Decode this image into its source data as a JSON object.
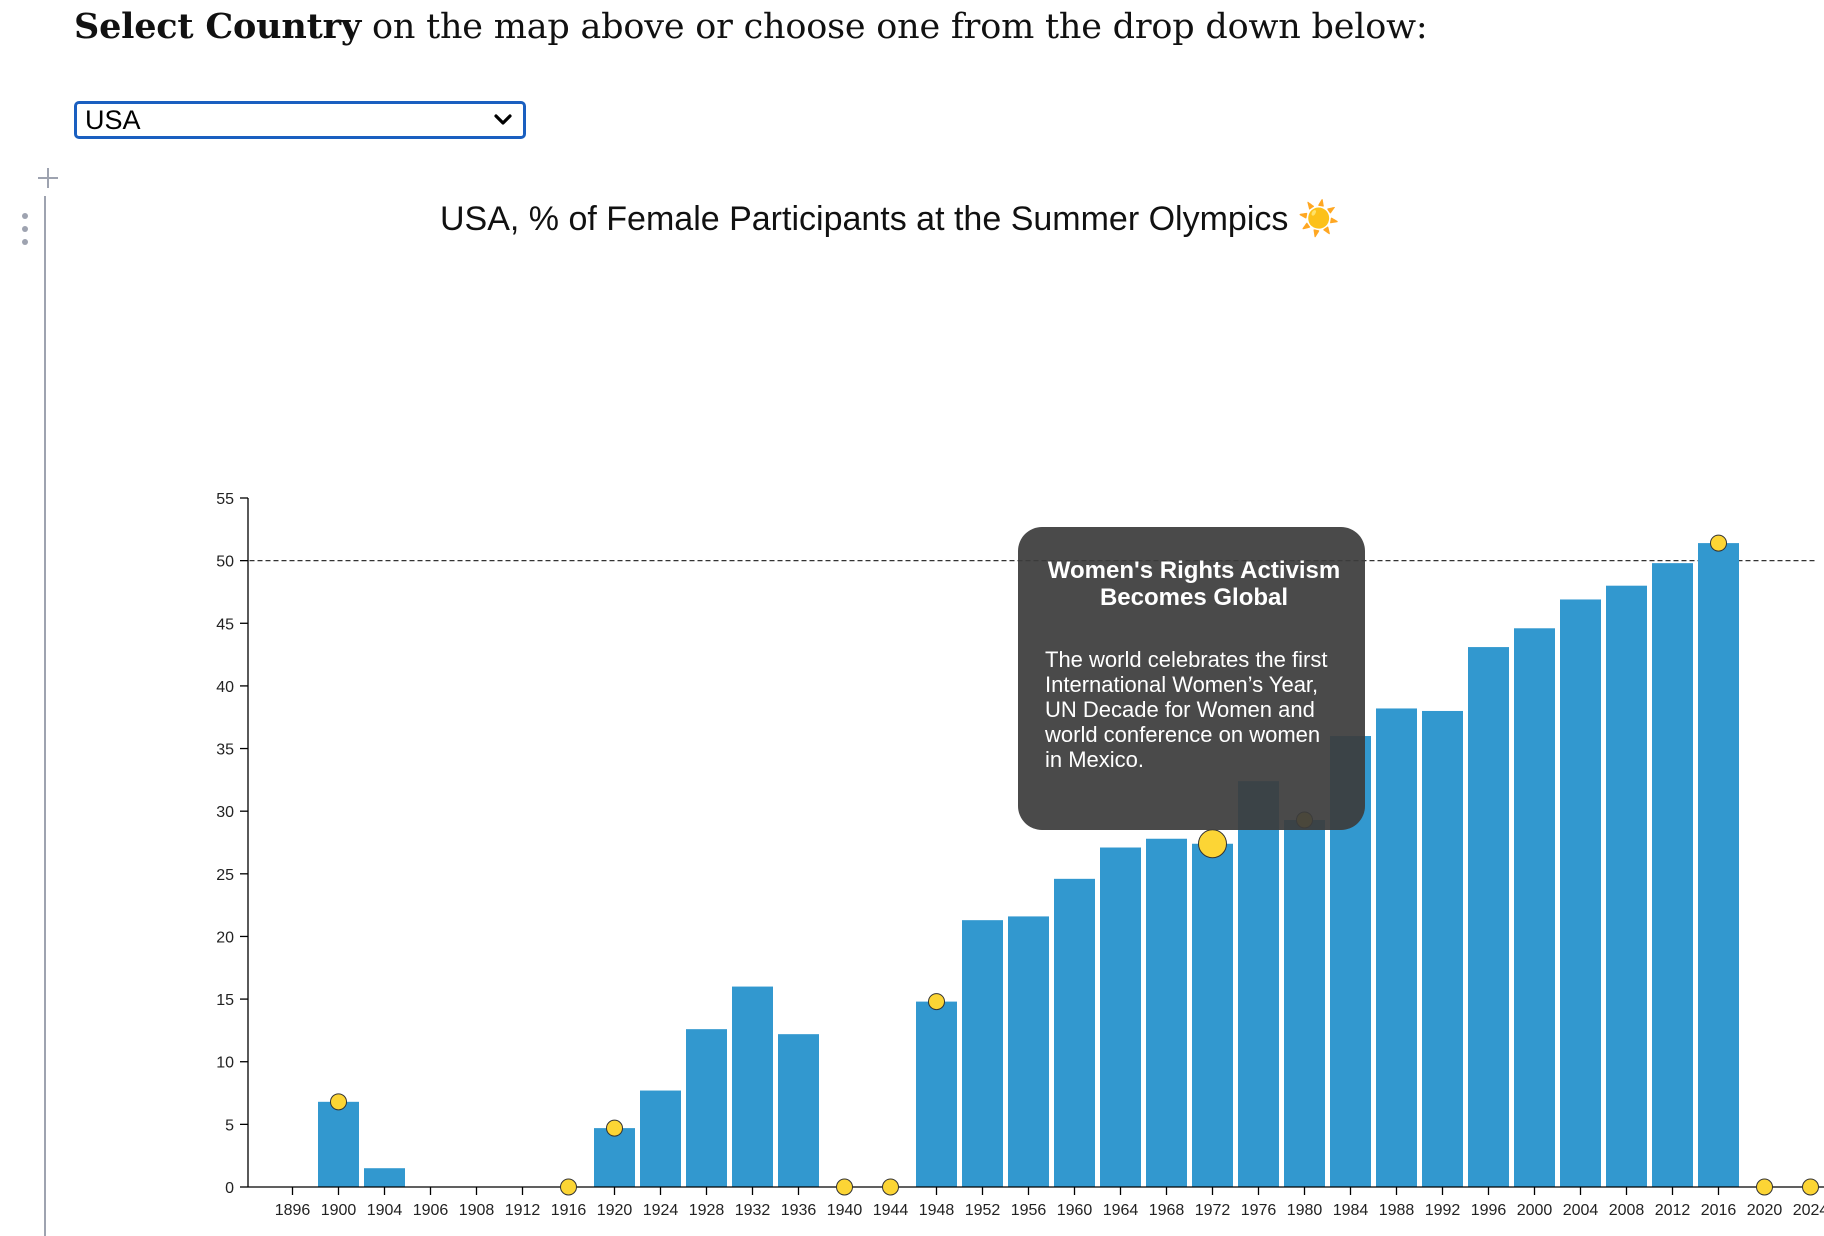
{
  "intro": {
    "bold": "Select Country",
    "rest": " on the map above or choose one from the drop down below:"
  },
  "select": {
    "value": "USA",
    "options": [
      "USA"
    ]
  },
  "icons": {
    "add": "plus-icon",
    "drag": "vertical-dots-icon",
    "dropdown": "chevron-down-icon",
    "title_emoji": "sun-icon"
  },
  "colors": {
    "bar": "#3298cf",
    "marker": "#fcd535",
    "marker_stroke": "#333333",
    "tooltip_bg": "#3c3c3c",
    "select_border": "#1a5fc0"
  },
  "tooltip": {
    "title": "Women's Rights Activism Becomes Global",
    "body": "The world celebrates the first International Women’s Year, UN Decade for Women and world conference on women in Mexico."
  },
  "chart_data": {
    "type": "bar",
    "title": "USA, % of Female Participants at the Summer Olympics ☀️",
    "xlabel": "",
    "ylabel": "",
    "ylim": [
      0,
      55
    ],
    "yticks": [
      0,
      5,
      10,
      15,
      20,
      25,
      30,
      35,
      40,
      45,
      50,
      55
    ],
    "reference_line": 50,
    "categories": [
      "1896",
      "1900",
      "1904",
      "1906",
      "1908",
      "1912",
      "1916",
      "1920",
      "1924",
      "1928",
      "1932",
      "1936",
      "1940",
      "1944",
      "1948",
      "1952",
      "1956",
      "1960",
      "1964",
      "1968",
      "1972",
      "1976",
      "1980",
      "1984",
      "1988",
      "1992",
      "1996",
      "2000",
      "2004",
      "2008",
      "2012",
      "2016",
      "2020",
      "2024"
    ],
    "values": [
      0,
      6.8,
      1.5,
      0,
      0,
      0,
      0,
      4.7,
      7.7,
      12.6,
      16.0,
      12.2,
      0,
      0,
      14.8,
      21.3,
      21.6,
      24.6,
      27.1,
      27.8,
      27.4,
      32.4,
      29.3,
      36.0,
      38.2,
      38.0,
      43.1,
      44.6,
      46.9,
      48.0,
      49.8,
      51.4,
      0,
      0
    ],
    "events": [
      {
        "year": "1900",
        "value": 6.8
      },
      {
        "year": "1916",
        "value": 0
      },
      {
        "year": "1920",
        "value": 4.7
      },
      {
        "year": "1940",
        "value": 0
      },
      {
        "year": "1944",
        "value": 0
      },
      {
        "year": "1948",
        "value": 14.8
      },
      {
        "year": "1972",
        "value": 27.4,
        "active": true
      },
      {
        "year": "1980",
        "value": 29.3
      },
      {
        "year": "2016",
        "value": 51.4
      },
      {
        "year": "2020",
        "value": 0
      },
      {
        "year": "2024",
        "value": 0
      }
    ]
  }
}
